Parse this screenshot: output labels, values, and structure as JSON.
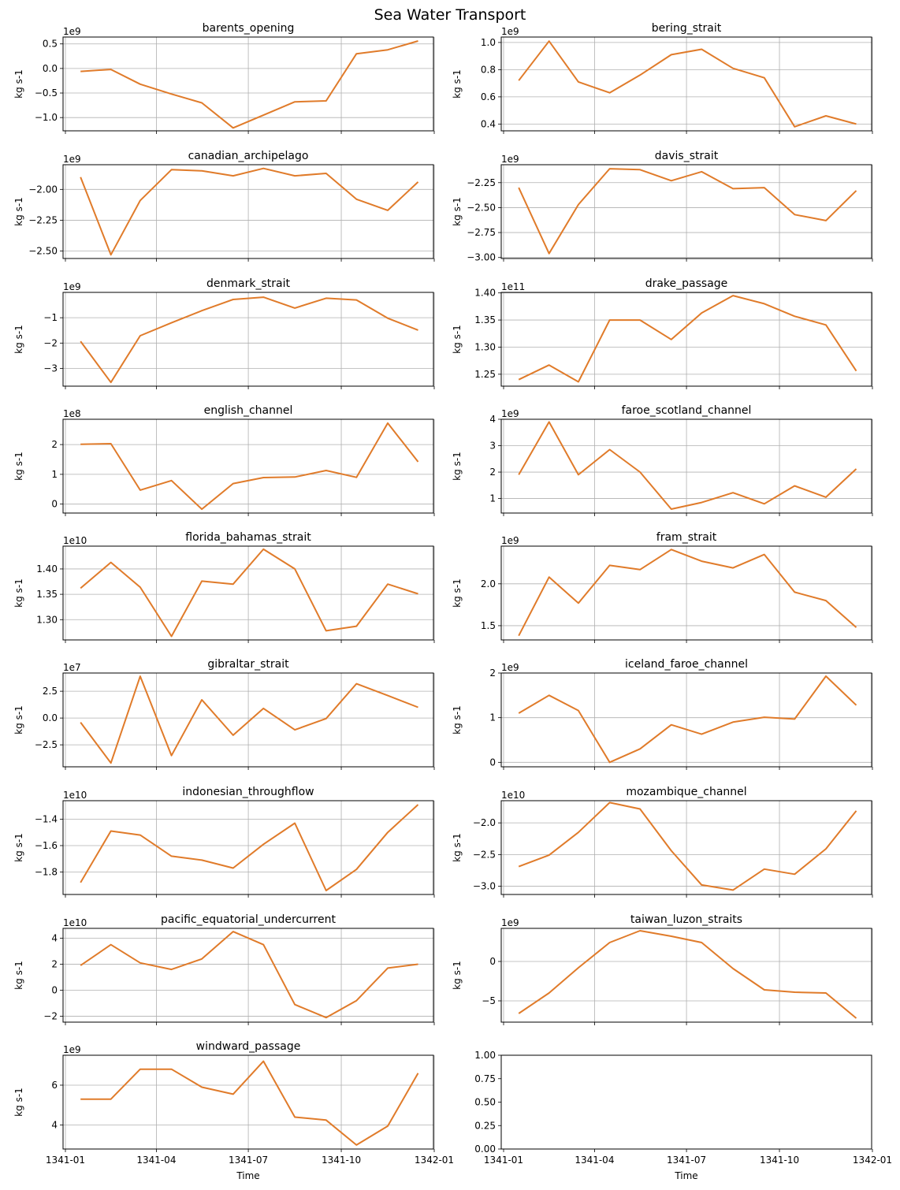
{
  "figure": {
    "title": "Sea Water Transport",
    "x_tick_labels": [
      "1341-01",
      "1341-04",
      "1341-07",
      "1341-10",
      "1342-01"
    ],
    "x_label": "Time",
    "line_color": "#e07b2a",
    "grid_color": "#b0b0b0"
  },
  "chart_data": [
    {
      "type": "line",
      "title": "barents_opening",
      "ylabel": "kg s-1",
      "offset": "1e9",
      "x": [
        "1341-01-16",
        "1341-02-15",
        "1341-03-16",
        "1341-04-16",
        "1341-05-16",
        "1341-06-16",
        "1341-07-16",
        "1341-08-16",
        "1341-09-16",
        "1341-10-16",
        "1341-11-16",
        "1341-12-16"
      ],
      "yticks": [
        "0.5",
        "0.0",
        "−0.5",
        "−1.0"
      ],
      "ytick_values": [
        0.5,
        0.0,
        -0.5,
        -1.0
      ],
      "ylim": [
        -1.27,
        0.64
      ],
      "values": [
        -0.06,
        -0.02,
        -0.32,
        -0.52,
        -0.7,
        -1.21,
        -0.95,
        -0.68,
        -0.66,
        0.3,
        0.38,
        0.56
      ]
    },
    {
      "type": "line",
      "title": "bering_strait",
      "ylabel": "kg s-1",
      "offset": "1e9",
      "x": [
        "1341-01-16",
        "1341-02-15",
        "1341-03-16",
        "1341-04-16",
        "1341-05-16",
        "1341-06-16",
        "1341-07-16",
        "1341-08-16",
        "1341-09-16",
        "1341-10-16",
        "1341-11-16",
        "1341-12-16"
      ],
      "yticks": [
        "1.0",
        "0.8",
        "0.6",
        "0.4"
      ],
      "ytick_values": [
        1.0,
        0.8,
        0.6,
        0.4
      ],
      "ylim": [
        0.35,
        1.04
      ],
      "values": [
        0.72,
        1.01,
        0.71,
        0.63,
        0.76,
        0.91,
        0.95,
        0.81,
        0.74,
        0.38,
        0.46,
        0.4
      ]
    },
    {
      "type": "line",
      "title": "canadian_archipelago",
      "ylabel": "kg s-1",
      "offset": "1e9",
      "x": [
        "1341-01-16",
        "1341-02-15",
        "1341-03-16",
        "1341-04-16",
        "1341-05-16",
        "1341-06-16",
        "1341-07-16",
        "1341-08-16",
        "1341-09-16",
        "1341-10-16",
        "1341-11-16",
        "1341-12-16"
      ],
      "yticks": [
        "−2.00",
        "−2.25",
        "−2.50"
      ],
      "ytick_values": [
        -2.0,
        -2.25,
        -2.5
      ],
      "ylim": [
        -2.56,
        -1.8
      ],
      "values": [
        -1.9,
        -2.53,
        -2.09,
        -1.84,
        -1.85,
        -1.89,
        -1.83,
        -1.89,
        -1.87,
        -2.08,
        -2.17,
        -1.94
      ]
    },
    {
      "type": "line",
      "title": "davis_strait",
      "ylabel": "kg s-1",
      "offset": "1e9",
      "x": [
        "1341-01-16",
        "1341-02-15",
        "1341-03-16",
        "1341-04-16",
        "1341-05-16",
        "1341-06-16",
        "1341-07-16",
        "1341-08-16",
        "1341-09-16",
        "1341-10-16",
        "1341-11-16",
        "1341-12-16"
      ],
      "yticks": [
        "−2.25",
        "−2.50",
        "−2.75",
        "−3.00"
      ],
      "ytick_values": [
        -2.25,
        -2.5,
        -2.75,
        -3.0
      ],
      "ylim": [
        -3.01,
        -2.07
      ],
      "values": [
        -2.3,
        -2.96,
        -2.47,
        -2.11,
        -2.12,
        -2.23,
        -2.14,
        -2.31,
        -2.3,
        -2.57,
        -2.63,
        -2.33
      ]
    },
    {
      "type": "line",
      "title": "denmark_strait",
      "ylabel": "kg s-1",
      "offset": "1e9",
      "x": [
        "1341-01-16",
        "1341-02-15",
        "1341-03-16",
        "1341-04-16",
        "1341-05-16",
        "1341-06-16",
        "1341-07-16",
        "1341-08-16",
        "1341-09-16",
        "1341-10-16",
        "1341-11-16",
        "1341-12-16"
      ],
      "yticks": [
        "−1",
        "−2",
        "−3"
      ],
      "ytick_values": [
        -1,
        -2,
        -3
      ],
      "ylim": [
        -3.7,
        0.0
      ],
      "values": [
        -1.93,
        -3.55,
        -1.71,
        -1.2,
        -0.72,
        -0.28,
        -0.19,
        -0.62,
        -0.23,
        -0.3,
        -1.02,
        -1.49
      ]
    },
    {
      "type": "line",
      "title": "drake_passage",
      "ylabel": "kg s-1",
      "offset": "1e11",
      "x": [
        "1341-01-16",
        "1341-02-15",
        "1341-03-16",
        "1341-04-16",
        "1341-05-16",
        "1341-06-16",
        "1341-07-16",
        "1341-08-16",
        "1341-09-16",
        "1341-10-16",
        "1341-11-16",
        "1341-12-16"
      ],
      "yticks": [
        "1.40",
        "1.35",
        "1.30",
        "1.25"
      ],
      "ytick_values": [
        1.4,
        1.35,
        1.3,
        1.25
      ],
      "ylim": [
        1.228,
        1.401
      ],
      "values": [
        1.24,
        1.267,
        1.236,
        1.35,
        1.35,
        1.314,
        1.363,
        1.395,
        1.38,
        1.357,
        1.341,
        1.256
      ]
    },
    {
      "type": "line",
      "title": "english_channel",
      "ylabel": "kg s-1",
      "offset": "1e8",
      "x": [
        "1341-01-16",
        "1341-02-15",
        "1341-03-16",
        "1341-04-16",
        "1341-05-16",
        "1341-06-16",
        "1341-07-16",
        "1341-08-16",
        "1341-09-16",
        "1341-10-16",
        "1341-11-16",
        "1341-12-16"
      ],
      "yticks": [
        "2",
        "1",
        "0"
      ],
      "ytick_values": [
        2,
        1,
        0
      ],
      "ylim": [
        -0.3,
        2.85
      ],
      "values": [
        2.01,
        2.03,
        0.47,
        0.79,
        -0.17,
        0.69,
        0.89,
        0.91,
        1.13,
        0.9,
        2.72,
        1.42
      ]
    },
    {
      "type": "line",
      "title": "faroe_scotland_channel",
      "ylabel": "kg s-1",
      "offset": "1e9",
      "x": [
        "1341-01-16",
        "1341-02-15",
        "1341-03-16",
        "1341-04-16",
        "1341-05-16",
        "1341-06-16",
        "1341-07-16",
        "1341-08-16",
        "1341-09-16",
        "1341-10-16",
        "1341-11-16",
        "1341-12-16"
      ],
      "yticks": [
        "4",
        "3",
        "2",
        "1"
      ],
      "ytick_values": [
        4,
        3,
        2,
        1
      ],
      "ylim": [
        0.45,
        4.0
      ],
      "values": [
        1.9,
        3.9,
        1.9,
        2.85,
        2.0,
        0.6,
        0.85,
        1.22,
        0.8,
        1.48,
        1.05,
        2.12
      ]
    },
    {
      "type": "line",
      "title": "florida_bahamas_strait",
      "ylabel": "kg s-1",
      "offset": "1e10",
      "x": [
        "1341-01-16",
        "1341-02-15",
        "1341-03-16",
        "1341-04-16",
        "1341-05-16",
        "1341-06-16",
        "1341-07-16",
        "1341-08-16",
        "1341-09-16",
        "1341-10-16",
        "1341-11-16",
        "1341-12-16"
      ],
      "yticks": [
        "1.40",
        "1.35",
        "1.30"
      ],
      "ytick_values": [
        1.4,
        1.35,
        1.3
      ],
      "ylim": [
        1.26,
        1.445
      ],
      "values": [
        1.362,
        1.413,
        1.364,
        1.267,
        1.376,
        1.37,
        1.439,
        1.4,
        1.278,
        1.287,
        1.37,
        1.351
      ]
    },
    {
      "type": "line",
      "title": "fram_strait",
      "ylabel": "kg s-1",
      "offset": "1e9",
      "x": [
        "1341-01-16",
        "1341-02-15",
        "1341-03-16",
        "1341-04-16",
        "1341-05-16",
        "1341-06-16",
        "1341-07-16",
        "1341-08-16",
        "1341-09-16",
        "1341-10-16",
        "1341-11-16",
        "1341-12-16"
      ],
      "yticks": [
        "2.0",
        "1.5"
      ],
      "ytick_values": [
        2.0,
        1.5
      ],
      "ylim": [
        1.33,
        2.45
      ],
      "values": [
        1.38,
        2.08,
        1.77,
        2.22,
        2.17,
        2.41,
        2.27,
        2.19,
        2.35,
        1.9,
        1.8,
        1.48
      ]
    },
    {
      "type": "line",
      "title": "gibraltar_strait",
      "ylabel": "kg s-1",
      "offset": "1e7",
      "x": [
        "1341-01-16",
        "1341-02-15",
        "1341-03-16",
        "1341-04-16",
        "1341-05-16",
        "1341-06-16",
        "1341-07-16",
        "1341-08-16",
        "1341-09-16",
        "1341-10-16",
        "1341-11-16",
        "1341-12-16"
      ],
      "yticks": [
        "2.5",
        "0.0",
        "−2.5"
      ],
      "ytick_values": [
        2.5,
        0.0,
        -2.5
      ],
      "ylim": [
        -4.55,
        4.2
      ],
      "values": [
        -0.4,
        -4.2,
        3.9,
        -3.5,
        1.7,
        -1.6,
        0.9,
        -1.1,
        -0.05,
        3.2,
        2.1,
        1.0
      ]
    },
    {
      "type": "line",
      "title": "iceland_faroe_channel",
      "ylabel": "kg s-1",
      "offset": "1e9",
      "x": [
        "1341-01-16",
        "1341-02-15",
        "1341-03-16",
        "1341-04-16",
        "1341-05-16",
        "1341-06-16",
        "1341-07-16",
        "1341-08-16",
        "1341-09-16",
        "1341-10-16",
        "1341-11-16",
        "1341-12-16"
      ],
      "yticks": [
        "2",
        "1",
        "0"
      ],
      "ytick_values": [
        2,
        1,
        0
      ],
      "ylim": [
        -0.1,
        2.0
      ],
      "values": [
        1.1,
        1.5,
        1.16,
        0.0,
        0.3,
        0.84,
        0.63,
        0.9,
        1.01,
        0.97,
        1.93,
        1.28
      ]
    },
    {
      "type": "line",
      "title": "indonesian_throughflow",
      "ylabel": "kg s-1",
      "offset": "1e10",
      "x": [
        "1341-01-16",
        "1341-02-15",
        "1341-03-16",
        "1341-04-16",
        "1341-05-16",
        "1341-06-16",
        "1341-07-16",
        "1341-08-16",
        "1341-09-16",
        "1341-10-16",
        "1341-11-16",
        "1341-12-16"
      ],
      "yticks": [
        "−1.4",
        "−1.6",
        "−1.8"
      ],
      "ytick_values": [
        -1.4,
        -1.6,
        -1.8
      ],
      "ylim": [
        -1.97,
        -1.26
      ],
      "values": [
        -1.88,
        -1.49,
        -1.52,
        -1.68,
        -1.71,
        -1.77,
        -1.59,
        -1.43,
        -1.94,
        -1.78,
        -1.5,
        -1.29
      ]
    },
    {
      "type": "line",
      "title": "mozambique_channel",
      "ylabel": "kg s-1",
      "offset": "1e10",
      "x": [
        "1341-01-16",
        "1341-02-15",
        "1341-03-16",
        "1341-04-16",
        "1341-05-16",
        "1341-06-16",
        "1341-07-16",
        "1341-08-16",
        "1341-09-16",
        "1341-10-16",
        "1341-11-16",
        "1341-12-16"
      ],
      "yticks": [
        "−2.0",
        "−2.5",
        "−3.0"
      ],
      "ytick_values": [
        -2.0,
        -2.5,
        -3.0
      ],
      "ylim": [
        -3.13,
        -1.65
      ],
      "values": [
        -2.69,
        -2.51,
        -2.15,
        -1.68,
        -1.78,
        -2.44,
        -2.98,
        -3.06,
        -2.73,
        -2.81,
        -2.41,
        -1.81
      ]
    },
    {
      "type": "line",
      "title": "pacific_equatorial_undercurrent",
      "ylabel": "kg s-1",
      "offset": "1e10",
      "x": [
        "1341-01-16",
        "1341-02-15",
        "1341-03-16",
        "1341-04-16",
        "1341-05-16",
        "1341-06-16",
        "1341-07-16",
        "1341-08-16",
        "1341-09-16",
        "1341-10-16",
        "1341-11-16",
        "1341-12-16"
      ],
      "yticks": [
        "4",
        "2",
        "0",
        "−2"
      ],
      "ytick_values": [
        4,
        2,
        0,
        -2
      ],
      "ylim": [
        -2.45,
        4.75
      ],
      "values": [
        1.9,
        3.5,
        2.1,
        1.6,
        2.4,
        4.5,
        3.5,
        -1.1,
        -2.1,
        -0.8,
        1.7,
        2.0
      ]
    },
    {
      "type": "line",
      "title": "taiwan_luzon_straits",
      "ylabel": "kg s-1",
      "offset": "1e9",
      "x": [
        "1341-01-16",
        "1341-02-15",
        "1341-03-16",
        "1341-04-16",
        "1341-05-16",
        "1341-06-16",
        "1341-07-16",
        "1341-08-16",
        "1341-09-16",
        "1341-10-16",
        "1341-11-16",
        "1341-12-16"
      ],
      "yticks": [
        "0",
        "−5"
      ],
      "ytick_values": [
        0,
        -5
      ],
      "ylim": [
        -7.7,
        4.2
      ],
      "values": [
        -6.6,
        -4.0,
        -0.8,
        2.4,
        3.9,
        3.2,
        2.4,
        -0.9,
        -3.6,
        -3.9,
        -4.0,
        -7.2
      ]
    },
    {
      "type": "line",
      "title": "windward_passage",
      "ylabel": "kg s-1",
      "offset": "1e9",
      "x": [
        "1341-01-16",
        "1341-02-15",
        "1341-03-16",
        "1341-04-16",
        "1341-05-16",
        "1341-06-16",
        "1341-07-16",
        "1341-08-16",
        "1341-09-16",
        "1341-10-16",
        "1341-11-16",
        "1341-12-16"
      ],
      "yticks": [
        "6",
        "4"
      ],
      "ytick_values": [
        6,
        4
      ],
      "ylim": [
        2.8,
        7.5
      ],
      "values": [
        5.3,
        5.3,
        6.8,
        6.8,
        5.9,
        5.55,
        7.2,
        4.4,
        4.25,
        3.0,
        3.95,
        6.6
      ]
    },
    {
      "type": "empty",
      "yticks": [
        "1.00",
        "0.75",
        "0.50",
        "0.25",
        "0.00"
      ],
      "ytick_values": [
        1.0,
        0.75,
        0.5,
        0.25,
        0.0
      ],
      "ylim": [
        0,
        1
      ]
    }
  ]
}
